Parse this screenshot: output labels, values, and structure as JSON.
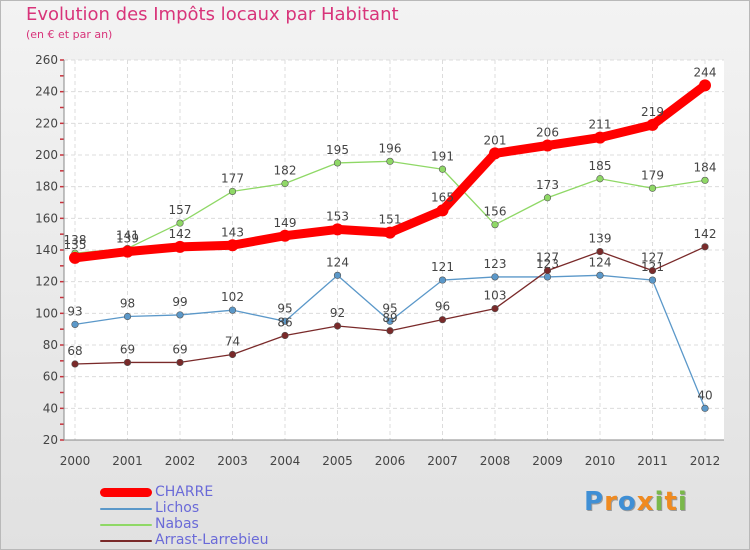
{
  "chart_data": {
    "type": "line",
    "title": "Evolution des Impôts locaux par Habitant",
    "subtitle": "(en € et par an)",
    "x": [
      "2000",
      "2001",
      "2002",
      "2003",
      "2004",
      "2005",
      "2006",
      "2007",
      "2008",
      "2009",
      "2010",
      "2011",
      "2012"
    ],
    "ylim": [
      20,
      260
    ],
    "yticks": [
      20,
      40,
      60,
      80,
      100,
      120,
      140,
      160,
      180,
      200,
      220,
      240,
      260
    ],
    "grid": true,
    "legend_position": "bottom-left",
    "series": [
      {
        "name": "CHARRE",
        "color": "#ff0000",
        "values": [
          135,
          139,
          142,
          143,
          149,
          153,
          151,
          165,
          201,
          206,
          211,
          219,
          244
        ]
      },
      {
        "name": "Lichos",
        "color": "#5b98c9",
        "values": [
          93,
          98,
          99,
          102,
          95,
          124,
          95,
          121,
          123,
          123,
          124,
          121,
          40
        ]
      },
      {
        "name": "Nabas",
        "color": "#8fd866",
        "values": [
          138,
          141,
          157,
          177,
          182,
          195,
          196,
          191,
          156,
          173,
          185,
          179,
          184
        ]
      },
      {
        "name": "Arrast-Larrebieu",
        "color": "#7a2a2a",
        "values": [
          68,
          69,
          69,
          74,
          86,
          92,
          89,
          96,
          103,
          127,
          139,
          127,
          142
        ]
      }
    ]
  },
  "logo": {
    "letters": [
      "P",
      "r",
      "o",
      "x",
      "i",
      "t",
      "i"
    ],
    "colors": [
      "#3f8fd5",
      "#f08a1f",
      "#3f8fd5",
      "#f08a1f",
      "#7ab84a",
      "#f08a1f",
      "#7ab84a"
    ]
  }
}
